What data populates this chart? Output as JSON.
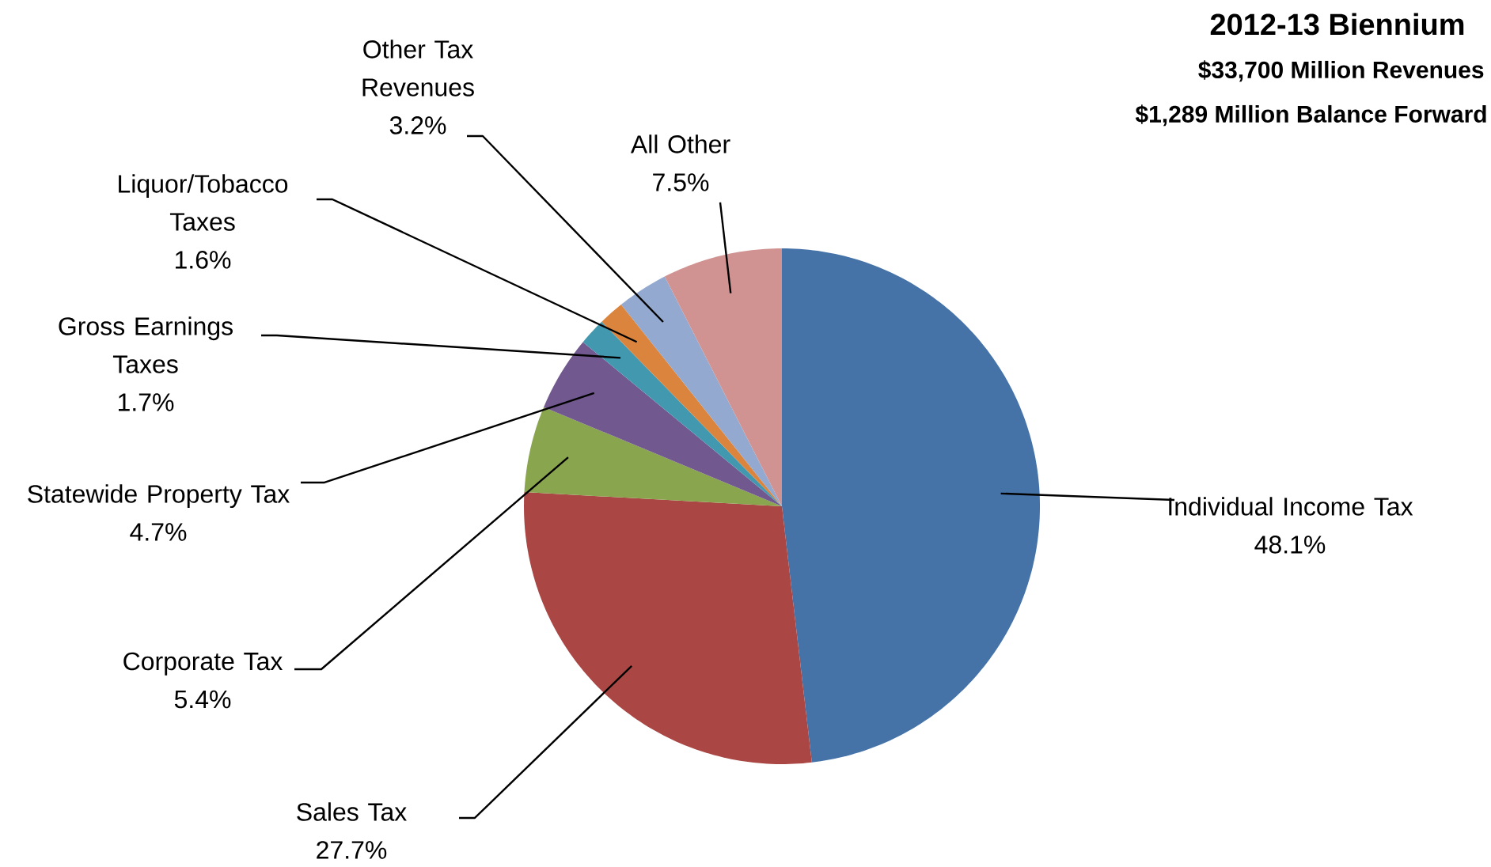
{
  "chart_data": {
    "type": "pie",
    "title": "2012-13 Biennium",
    "subtitle": "$33,700 Million Revenues",
    "annotations": [
      "$1,289 Million Balance Forward"
    ],
    "categories": [
      "Individual Income Tax",
      "Sales Tax",
      "Corporate Tax",
      "Statewide Property Tax",
      "Gross Earnings Taxes",
      "Liquor/Tobacco Taxes",
      "Other Tax Revenues",
      "All Other"
    ],
    "values": [
      48.1,
      27.7,
      5.4,
      4.7,
      1.7,
      1.6,
      3.2,
      7.5
    ],
    "colors": [
      "#4572a7",
      "#aa4643",
      "#89a54e",
      "#71588f",
      "#4198af",
      "#db843d",
      "#93a9cf",
      "#d19392"
    ],
    "value_labels": [
      "48.1%",
      "27.7%",
      "5.4%",
      "4.7%",
      "1.7%",
      "1.6%",
      "3.2%",
      "7.5%"
    ]
  }
}
